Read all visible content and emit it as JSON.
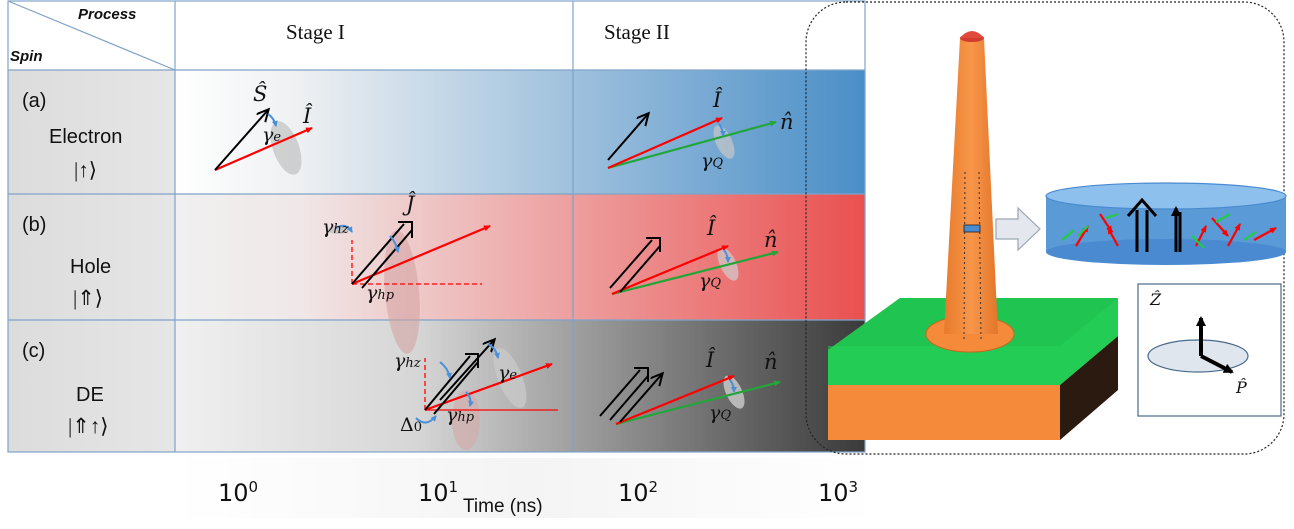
{
  "header": {
    "process": "Process",
    "spin": "Spin",
    "stage1": "Stage I",
    "stage2": "Stage II"
  },
  "rows": [
    {
      "letter": "(a)",
      "name": "Electron",
      "state": "|↑⟩",
      "color": "#4a8ec7"
    },
    {
      "letter": "(b)",
      "name": "Hole",
      "state": "|⇑⟩",
      "color": "#e85555"
    },
    {
      "letter": "(c)",
      "name": "DE",
      "state": "|⇑↑⟩",
      "color": "#3c3c3c"
    }
  ],
  "symbols": {
    "S": "Ŝ",
    "I": "Î",
    "J": "Ĵ",
    "n": "n̂",
    "gamma": "γ",
    "e": "e",
    "Q": "Q",
    "h": "h",
    "z": "z",
    "p": "p",
    "delta0": "Δ",
    "zero": "0",
    "Z": "Ẑ",
    "P": "P̂"
  },
  "axis": {
    "ticks": [
      {
        "base": "10",
        "exp": "0"
      },
      {
        "base": "10",
        "exp": "1"
      },
      {
        "base": "10",
        "exp": "2"
      },
      {
        "base": "10",
        "exp": "3"
      }
    ],
    "title": "Time (ns)"
  },
  "colors": {
    "electron_arrow": "#ff0000",
    "nuclear_axis_arrow": "#22a63a",
    "spin_arrow": "#000000",
    "pillar": "#f58a3a",
    "substrate_top": "#22cc55",
    "substrate_side": "#f58a3a",
    "disk": "#4a8ad0",
    "border": "#7fa3c7"
  }
}
